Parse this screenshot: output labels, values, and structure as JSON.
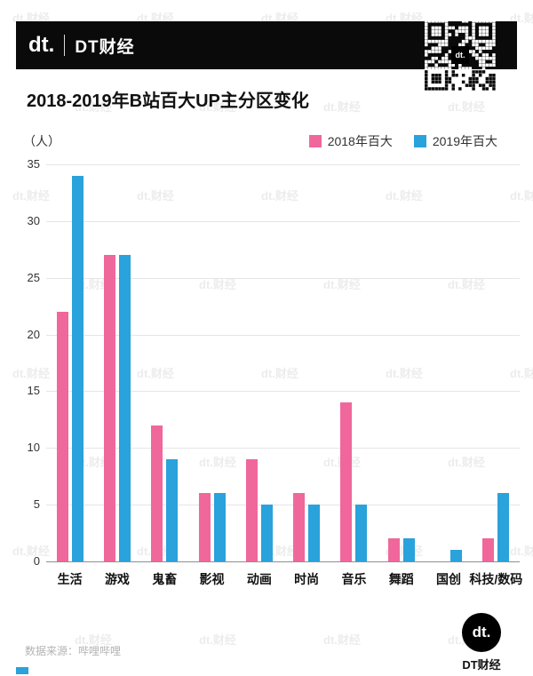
{
  "header": {
    "logo_text": "dt.",
    "brand_name": "DT财经"
  },
  "qr": {
    "center_label": "dt."
  },
  "title": "2018-2019年B站百大UP主分区变化",
  "unit_label": "（人）",
  "legend": [
    {
      "label": "2018年百大",
      "color": "#F0679C"
    },
    {
      "label": "2019年百大",
      "color": "#2AA2DB"
    }
  ],
  "chart_data": {
    "type": "bar",
    "title": "2018-2019年B站百大UP主分区变化",
    "ylabel": "人",
    "categories": [
      "生活",
      "游戏",
      "鬼畜",
      "影视",
      "动画",
      "时尚",
      "音乐",
      "舞蹈",
      "国创",
      "科技/数码"
    ],
    "series": [
      {
        "name": "2018年百大",
        "color": "#F0679C",
        "values": [
          22,
          27,
          12,
          6,
          9,
          6,
          14,
          2,
          0,
          2
        ]
      },
      {
        "name": "2019年百大",
        "color": "#2AA2DB",
        "values": [
          34,
          27,
          9,
          6,
          5,
          5,
          5,
          2,
          1,
          6
        ]
      }
    ],
    "ylim": [
      0,
      35
    ],
    "yticks": [
      0,
      5,
      10,
      15,
      20,
      25,
      30,
      35
    ],
    "grid": true,
    "legend_position": "top-right"
  },
  "watermark_text": "dt.财经",
  "footer": {
    "source": "数据来源：哔哩哔哩",
    "logo_text": "dt.",
    "brand_name": "DT财经"
  }
}
